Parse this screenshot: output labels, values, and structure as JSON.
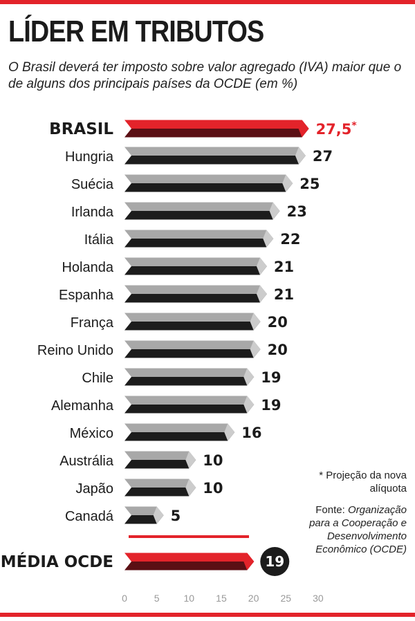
{
  "header": {
    "title": "LÍDER EM TRIBUTOS",
    "subtitle": "O Brasil deverá ter imposto sobre valor agregado (IVA) maior que o de alguns dos principais países da OCDE (em %)"
  },
  "chart_data": {
    "type": "bar",
    "orientation": "horizontal",
    "categories": [
      "BRASIL",
      "Hungria",
      "Suécia",
      "Irlanda",
      "Itália",
      "Holanda",
      "Espanha",
      "França",
      "Reino Unido",
      "Chile",
      "Alemanha",
      "México",
      "Austrália",
      "Japão",
      "Canadá",
      "MÉDIA OCDE"
    ],
    "values": [
      27.5,
      27,
      25,
      23,
      22,
      21,
      21,
      20,
      20,
      19,
      19,
      16,
      10,
      10,
      5,
      19
    ],
    "value_labels": [
      "27,5*",
      "27",
      "25",
      "23",
      "22",
      "21",
      "21",
      "20",
      "20",
      "19",
      "19",
      "16",
      "10",
      "10",
      "5",
      "19"
    ],
    "highlight": [
      "BRASIL",
      "MÉDIA OCDE"
    ],
    "xlim": [
      0,
      30
    ],
    "xticks": [
      "0",
      "5",
      "10",
      "15",
      "20",
      "25",
      "30"
    ],
    "grid": false,
    "legend": "none"
  },
  "notes": {
    "asterisk": "* Projeção da nova alíquota",
    "source_prefix": "Fonte: ",
    "source_name": "Organização para a Cooperação e Desenvolvimento Econômico (OCDE)"
  },
  "colors": {
    "accent_red": "#e3232a",
    "dark_red": "#5b0f14",
    "bar_grey": "#a8a8a8",
    "bar_dark": "#1c1c1c",
    "text": "#1b1b1b",
    "axis_text": "#999999"
  }
}
